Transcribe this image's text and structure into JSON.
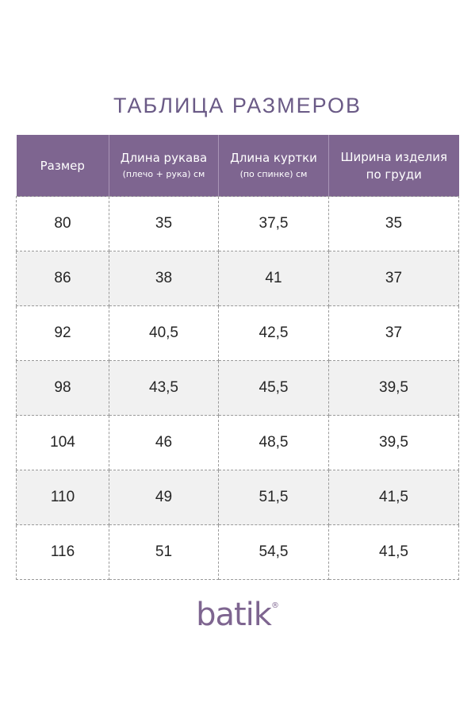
{
  "title": "ТАБЛИЦА  РАЗМЕРОВ",
  "table": {
    "headers": [
      {
        "main": "Размер",
        "sub": ""
      },
      {
        "main": "Длина рукава",
        "sub": "(плечо + рука) см"
      },
      {
        "main": "Длина куртки",
        "sub": "(по спинке) см"
      },
      {
        "main": "Ширина изделия",
        "sub": "по груди"
      }
    ],
    "rows": [
      [
        "80",
        "35",
        "37,5",
        "35"
      ],
      [
        "86",
        "38",
        "41",
        "37"
      ],
      [
        "92",
        "40,5",
        "42,5",
        "37"
      ],
      [
        "98",
        "43,5",
        "45,5",
        "39,5"
      ],
      [
        "104",
        "46",
        "48,5",
        "39,5"
      ],
      [
        "110",
        "49",
        "51,5",
        "41,5"
      ],
      [
        "116",
        "51",
        "54,5",
        "41,5"
      ]
    ]
  },
  "logo": {
    "text": "batik",
    "mark": "®"
  },
  "colors": {
    "accent": "#7e6590",
    "title": "#6a5a86",
    "stripe": "#f1f1f1"
  }
}
